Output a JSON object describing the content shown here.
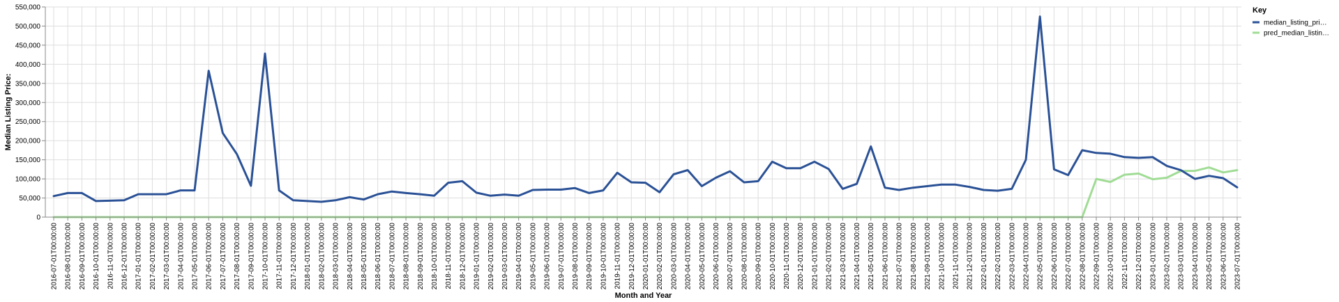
{
  "chart_data": {
    "type": "line",
    "xlabel": "Month and Year",
    "ylabel": "Median Listing Price:",
    "ylim": [
      0,
      550000
    ],
    "yticks": [
      "0",
      "50,000",
      "100,000",
      "150,000",
      "200,000",
      "250,000",
      "300,000",
      "350,000",
      "400,000",
      "450,000",
      "500,000",
      "550,000"
    ],
    "grid": true,
    "legend": {
      "title": "Key",
      "placement": "right",
      "labels": [
        "median_listing_pri…",
        "pred_median_listin…"
      ]
    },
    "categories": [
      "2016-07-01T00:00:00",
      "2016-08-01T00:00:00",
      "2016-09-01T00:00:00",
      "2016-10-01T00:00:00",
      "2016-11-01T00:00:00",
      "2016-12-01T00:00:00",
      "2017-01-01T00:00:00",
      "2017-02-01T00:00:00",
      "2017-03-01T00:00:00",
      "2017-04-01T00:00:00",
      "2017-05-01T00:00:00",
      "2017-06-01T00:00:00",
      "2017-07-01T00:00:00",
      "2017-08-01T00:00:00",
      "2017-09-01T00:00:00",
      "2017-10-01T00:00:00",
      "2017-11-01T00:00:00",
      "2017-12-01T00:00:00",
      "2018-01-01T00:00:00",
      "2018-02-01T00:00:00",
      "2018-03-01T00:00:00",
      "2018-04-01T00:00:00",
      "2018-05-01T00:00:00",
      "2018-06-01T00:00:00",
      "2018-07-01T00:00:00",
      "2018-08-01T00:00:00",
      "2018-09-01T00:00:00",
      "2018-10-01T00:00:00",
      "2018-11-01T00:00:00",
      "2018-12-01T00:00:00",
      "2019-01-01T00:00:00",
      "2019-02-01T00:00:00",
      "2019-03-01T00:00:00",
      "2019-04-01T00:00:00",
      "2019-05-01T00:00:00",
      "2019-06-01T00:00:00",
      "2019-07-01T00:00:00",
      "2019-08-01T00:00:00",
      "2019-09-01T00:00:00",
      "2019-10-01T00:00:00",
      "2019-11-01T00:00:00",
      "2019-12-01T00:00:00",
      "2020-01-01T00:00:00",
      "2020-02-01T00:00:00",
      "2020-03-01T00:00:00",
      "2020-04-01T00:00:00",
      "2020-05-01T00:00:00",
      "2020-06-01T00:00:00",
      "2020-07-01T00:00:00",
      "2020-08-01T00:00:00",
      "2020-09-01T00:00:00",
      "2020-10-01T00:00:00",
      "2020-11-01T00:00:00",
      "2020-12-01T00:00:00",
      "2021-01-01T00:00:00",
      "2021-02-01T00:00:00",
      "2021-03-01T00:00:00",
      "2021-04-01T00:00:00",
      "2021-05-01T00:00:00",
      "2021-06-01T00:00:00",
      "2021-07-01T00:00:00",
      "2021-08-01T00:00:00",
      "2021-09-01T00:00:00",
      "2021-10-01T00:00:00",
      "2021-11-01T00:00:00",
      "2021-12-01T00:00:00",
      "2022-01-01T00:00:00",
      "2022-02-01T00:00:00",
      "2022-03-01T00:00:00",
      "2022-04-01T00:00:00",
      "2022-05-01T00:00:00",
      "2022-06-01T00:00:00",
      "2022-07-01T00:00:00",
      "2022-08-01T00:00:00",
      "2022-09-01T00:00:00",
      "2022-10-01T00:00:00",
      "2022-11-01T00:00:00",
      "2022-12-01T00:00:00",
      "2023-01-01T00:00:00",
      "2023-02-01T00:00:00",
      "2023-03-01T00:00:00",
      "2023-04-01T00:00:00",
      "2023-05-01T00:00:00",
      "2023-06-01T00:00:00",
      "2023-07-01T00:00:00"
    ],
    "series": [
      {
        "name": "median_listing_pri…",
        "color": "#2a5196",
        "values": [
          55000,
          63000,
          63000,
          42000,
          43000,
          44000,
          60000,
          60000,
          60000,
          70000,
          70000,
          383000,
          220000,
          165000,
          82000,
          428000,
          70000,
          44000,
          42000,
          40000,
          44000,
          52000,
          46000,
          60000,
          67000,
          63000,
          60000,
          56000,
          90000,
          94000,
          64000,
          56000,
          59000,
          56000,
          71000,
          72000,
          72000,
          76000,
          63000,
          70000,
          116000,
          91000,
          90000,
          65000,
          112000,
          123000,
          81000,
          103000,
          120000,
          91000,
          94000,
          145000,
          128000,
          128000,
          145000,
          126000,
          74000,
          87000,
          185000,
          77000,
          71000,
          77000,
          81000,
          85000,
          85000,
          79000,
          71000,
          69000,
          74000,
          150000,
          525000,
          125000,
          110000,
          175000,
          168000,
          166000,
          157000,
          155000,
          157000,
          134000,
          123000,
          100000,
          108000,
          102000,
          78000
        ]
      },
      {
        "name": "pred_median_listin…",
        "color": "#a0dc95",
        "values": [
          0,
          0,
          0,
          0,
          0,
          0,
          0,
          0,
          0,
          0,
          0,
          0,
          0,
          0,
          0,
          0,
          0,
          0,
          0,
          0,
          0,
          0,
          0,
          0,
          0,
          0,
          0,
          0,
          0,
          0,
          0,
          0,
          0,
          0,
          0,
          0,
          0,
          0,
          0,
          0,
          0,
          0,
          0,
          0,
          0,
          0,
          0,
          0,
          0,
          0,
          0,
          0,
          0,
          0,
          0,
          0,
          0,
          0,
          0,
          0,
          0,
          0,
          0,
          0,
          0,
          0,
          0,
          0,
          0,
          0,
          0,
          0,
          0,
          0,
          100000,
          92000,
          111000,
          114000,
          99000,
          103000,
          121000,
          121000,
          130000,
          117000,
          123000
        ]
      }
    ]
  }
}
